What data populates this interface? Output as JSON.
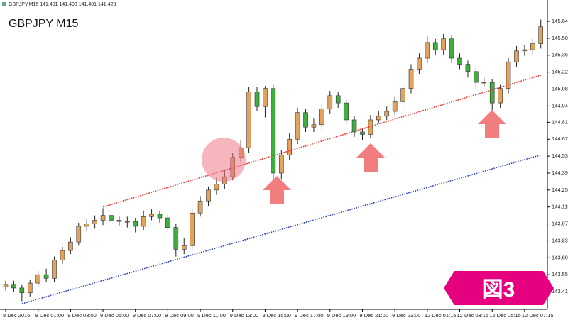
{
  "chart_data": {
    "type": "candlestick",
    "header": "GBPJPY,M15  141.481 141.493 141.401 141.423",
    "title": "GBPJPY M15",
    "badge": "図3",
    "up_color": "#e3a25e",
    "down_color": "#3fae3f",
    "categories": [
      "8 Dec 2016",
      null,
      null,
      null,
      "9 Dec 01:00",
      null,
      null,
      null,
      "9 Dec 03:00",
      null,
      null,
      null,
      "9 Dec 05:00",
      null,
      null,
      null,
      "9 Dec 07:00",
      null,
      null,
      null,
      "9 Dec 09:00",
      null,
      null,
      null,
      "9 Dec 11:00",
      null,
      null,
      null,
      "9 Dec 13:00",
      null,
      null,
      null,
      "9 Dec 15:00",
      null,
      null,
      null,
      "9 Dec 17:00",
      null,
      null,
      null,
      "9 Dec 19:00",
      null,
      null,
      null,
      "9 Dec 21:00",
      null,
      null,
      null,
      "9 Dec 23:00",
      null,
      null,
      null,
      "12 Dec 01:15",
      null,
      null,
      null,
      "12 Dec 03:15",
      null,
      null,
      null,
      "12 Dec 05:15",
      null,
      null,
      null,
      "12 Dec 07:15",
      null,
      null
    ],
    "open": [
      143.45,
      143.47,
      143.44,
      143.4,
      143.48,
      143.55,
      143.52,
      143.67,
      143.75,
      143.82,
      143.95,
      143.97,
      144.0,
      144.04,
      144.0,
      143.99,
      143.99,
      143.95,
      144.03,
      144.05,
      144.02,
      143.94,
      143.76,
      143.79,
      144.06,
      144.16,
      144.25,
      144.3,
      144.36,
      144.52,
      144.6,
      145.06,
      144.94,
      145.09,
      144.39,
      144.54,
      144.67,
      144.89,
      144.77,
      144.79,
      144.92,
      145.03,
      144.97,
      144.83,
      144.73,
      144.71,
      144.83,
      144.86,
      144.9,
      144.98,
      145.09,
      145.25,
      145.34,
      145.47,
      145.41,
      145.5,
      145.34,
      145.29,
      145.23,
      145.14,
      145.14,
      144.97,
      145.09,
      145.31,
      145.4,
      145.41,
      145.46
    ],
    "high": [
      143.5,
      143.5,
      143.47,
      143.51,
      143.58,
      143.6,
      143.7,
      143.78,
      143.86,
      143.98,
      144.01,
      144.04,
      144.1,
      144.07,
      144.03,
      144.03,
      144.02,
      144.08,
      144.09,
      144.08,
      144.05,
      143.97,
      143.85,
      144.09,
      144.2,
      144.28,
      144.35,
      144.42,
      144.56,
      144.66,
      145.1,
      145.1,
      145.11,
      145.12,
      144.58,
      144.72,
      144.93,
      144.92,
      144.84,
      144.96,
      145.07,
      145.06,
      145.0,
      144.86,
      144.76,
      144.87,
      144.9,
      144.94,
      145.02,
      145.13,
      145.29,
      145.38,
      145.52,
      145.5,
      145.54,
      145.53,
      145.38,
      145.32,
      145.26,
      145.18,
      145.17,
      145.12,
      145.34,
      145.44,
      145.45,
      145.5,
      145.66
    ],
    "low": [
      143.42,
      143.41,
      143.33,
      143.37,
      143.45,
      143.49,
      143.49,
      143.64,
      143.72,
      143.79,
      143.91,
      143.93,
      143.96,
      143.96,
      143.95,
      143.94,
      143.9,
      143.92,
      144.0,
      143.98,
      143.9,
      143.7,
      143.72,
      143.76,
      144.03,
      144.12,
      144.21,
      144.26,
      144.33,
      144.48,
      144.56,
      144.9,
      144.85,
      144.33,
      144.34,
      144.5,
      144.63,
      144.73,
      144.73,
      144.75,
      144.88,
      144.93,
      144.79,
      144.69,
      144.66,
      144.68,
      144.8,
      144.83,
      144.87,
      144.95,
      145.05,
      145.21,
      145.3,
      145.37,
      145.37,
      145.3,
      145.25,
      145.18,
      145.09,
      145.1,
      144.91,
      144.93,
      145.05,
      145.27,
      145.36,
      145.37,
      145.42
    ],
    "close": [
      143.47,
      143.44,
      143.4,
      143.48,
      143.55,
      143.52,
      143.67,
      143.75,
      143.82,
      143.95,
      143.97,
      144.0,
      144.04,
      144.0,
      143.99,
      143.99,
      143.95,
      144.03,
      144.05,
      144.02,
      143.94,
      143.76,
      143.79,
      144.06,
      144.16,
      144.25,
      144.3,
      144.36,
      144.52,
      144.6,
      145.06,
      144.94,
      145.09,
      144.39,
      144.54,
      144.67,
      144.89,
      144.77,
      144.79,
      144.92,
      145.03,
      144.97,
      144.83,
      144.73,
      144.71,
      144.83,
      144.86,
      144.9,
      144.98,
      145.09,
      145.25,
      145.34,
      145.47,
      145.41,
      145.5,
      145.34,
      145.29,
      145.23,
      145.14,
      145.14,
      144.97,
      145.09,
      145.31,
      145.4,
      145.41,
      145.46,
      145.6
    ],
    "trendlines": [
      {
        "color": "#e8312a",
        "from": [
          12,
          144.11
        ],
        "to": [
          66,
          145.2
        ]
      },
      {
        "color": "#2a3fb0",
        "from": [
          2,
          143.31
        ],
        "to": [
          66,
          144.54
        ]
      }
    ],
    "ylim": [
      143.287,
      145.739
    ],
    "yticks": [
      145.645,
      145.505,
      145.365,
      145.225,
      145.085,
      144.945,
      {
        "value": 144.81,
        "label": "144.810"
      },
      {
        "value": 144.67,
        "label": "144.670"
      },
      {
        "value": 144.53,
        "label": "144.530"
      },
      {
        "value": 144.39,
        "label": "144.390"
      },
      {
        "value": 144.25,
        "label": "144.250"
      },
      {
        "value": 144.11,
        "label": "144.110"
      },
      {
        "value": 143.97,
        "label": "143.970"
      },
      {
        "value": 143.83,
        "label": "143.830"
      },
      {
        "value": 143.69,
        "label": "143.690"
      },
      {
        "value": 143.55,
        "label": "143.550"
      },
      {
        "value": 143.41,
        "label": "143.410"
      }
    ]
  }
}
